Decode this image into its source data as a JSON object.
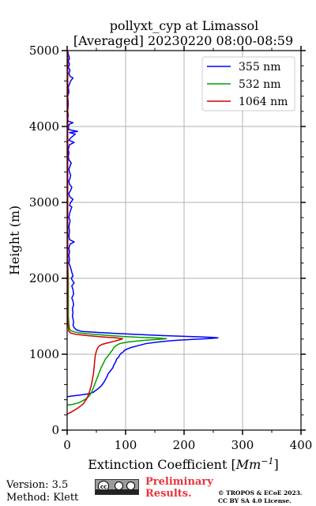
{
  "chart_data": {
    "type": "line",
    "title_line1": "pollyxt_cyp at Limassol",
    "title_line2": "[Averaged] 20230220 08:00-08:59",
    "xlabel": "Extinction Coefficient [",
    "xlabel_unit": "Mm",
    "xlabel_exp": "−1",
    "xlabel_close": "]",
    "ylabel": "Height (m)",
    "xlim": [
      0,
      400
    ],
    "ylim": [
      0,
      5000
    ],
    "x_ticks": [
      0,
      100,
      200,
      300,
      400
    ],
    "y_ticks": [
      0,
      1000,
      2000,
      3000,
      4000,
      5000
    ],
    "grid": true,
    "legend_position": "top-right",
    "series": [
      {
        "name": "355 nm",
        "color": "#0000ff",
        "points": [
          [
            0,
            440
          ],
          [
            10,
            450
          ],
          [
            25,
            465
          ],
          [
            38,
            480
          ],
          [
            45,
            500
          ],
          [
            52,
            540
          ],
          [
            58,
            580
          ],
          [
            62,
            620
          ],
          [
            65,
            660
          ],
          [
            68,
            700
          ],
          [
            70,
            740
          ],
          [
            74,
            780
          ],
          [
            78,
            820
          ],
          [
            80,
            860
          ],
          [
            83,
            900
          ],
          [
            85,
            940
          ],
          [
            88,
            960
          ],
          [
            90,
            990
          ],
          [
            92,
            1010
          ],
          [
            96,
            1030
          ],
          [
            98,
            1050
          ],
          [
            103,
            1070
          ],
          [
            110,
            1090
          ],
          [
            120,
            1110
          ],
          [
            135,
            1140
          ],
          [
            155,
            1160
          ],
          [
            180,
            1180
          ],
          [
            215,
            1195
          ],
          [
            240,
            1205
          ],
          [
            258,
            1215
          ],
          [
            250,
            1222
          ],
          [
            215,
            1232
          ],
          [
            165,
            1245
          ],
          [
            120,
            1260
          ],
          [
            80,
            1275
          ],
          [
            45,
            1290
          ],
          [
            25,
            1300
          ],
          [
            16,
            1320
          ],
          [
            12,
            1350
          ],
          [
            10,
            1380
          ],
          [
            11,
            1420
          ],
          [
            10,
            1470
          ],
          [
            9,
            1500
          ],
          [
            10,
            1550
          ],
          [
            9,
            1600
          ],
          [
            11,
            1650
          ],
          [
            10,
            1700
          ],
          [
            8,
            1740
          ],
          [
            11,
            1790
          ],
          [
            10,
            1850
          ],
          [
            8,
            1900
          ],
          [
            12,
            1940
          ],
          [
            10,
            1960
          ],
          [
            7,
            2000
          ],
          [
            10,
            2030
          ],
          [
            8,
            2080
          ],
          [
            7,
            2110
          ],
          [
            5,
            2160
          ],
          [
            3,
            2200
          ],
          [
            4,
            2250
          ],
          [
            3,
            2300
          ],
          [
            4,
            2350
          ],
          [
            3,
            2400
          ],
          [
            5,
            2450
          ],
          [
            12,
            2480
          ],
          [
            4,
            2510
          ],
          [
            3,
            2560
          ],
          [
            4,
            2620
          ],
          [
            3,
            2680
          ],
          [
            4,
            2720
          ],
          [
            5,
            2760
          ],
          [
            3,
            2800
          ],
          [
            4,
            2850
          ],
          [
            6,
            2900
          ],
          [
            8,
            2940
          ],
          [
            4,
            2960
          ],
          [
            6,
            3000
          ],
          [
            10,
            3040
          ],
          [
            4,
            3080
          ],
          [
            3,
            3120
          ],
          [
            6,
            3160
          ],
          [
            8,
            3200
          ],
          [
            4,
            3240
          ],
          [
            3,
            3280
          ],
          [
            5,
            3320
          ],
          [
            6,
            3360
          ],
          [
            4,
            3400
          ],
          [
            3,
            3440
          ],
          [
            5,
            3480
          ],
          [
            7,
            3520
          ],
          [
            3,
            3560
          ],
          [
            2,
            3600
          ],
          [
            3,
            3650
          ],
          [
            2,
            3700
          ],
          [
            4,
            3760
          ],
          [
            12,
            3790
          ],
          [
            3,
            3820
          ],
          [
            6,
            3850
          ],
          [
            14,
            3900
          ],
          [
            4,
            3920
          ],
          [
            18,
            3935
          ],
          [
            3,
            3960
          ],
          [
            2,
            4000
          ],
          [
            4,
            4030
          ],
          [
            10,
            4050
          ],
          [
            2,
            4070
          ],
          [
            1,
            4100
          ],
          [
            2,
            4150
          ],
          [
            1,
            4200
          ],
          [
            2,
            4300
          ],
          [
            1,
            4400
          ],
          [
            3,
            4450
          ],
          [
            2,
            4520
          ],
          [
            4,
            4560
          ],
          [
            6,
            4600
          ],
          [
            10,
            4640
          ],
          [
            5,
            4660
          ],
          [
            3,
            4700
          ],
          [
            5,
            4740
          ],
          [
            2,
            4780
          ],
          [
            4,
            4820
          ],
          [
            2,
            4860
          ],
          [
            4,
            4900
          ],
          [
            2,
            4950
          ],
          [
            1,
            5000
          ]
        ]
      },
      {
        "name": "532 nm",
        "color": "#00a000",
        "points": [
          [
            0,
            330
          ],
          [
            10,
            340
          ],
          [
            20,
            360
          ],
          [
            30,
            400
          ],
          [
            38,
            450
          ],
          [
            42,
            500
          ],
          [
            45,
            560
          ],
          [
            48,
            620
          ],
          [
            52,
            700
          ],
          [
            55,
            760
          ],
          [
            58,
            820
          ],
          [
            62,
            880
          ],
          [
            65,
            930
          ],
          [
            70,
            980
          ],
          [
            74,
            1020
          ],
          [
            78,
            1060
          ],
          [
            80,
            1090
          ],
          [
            85,
            1120
          ],
          [
            90,
            1140
          ],
          [
            100,
            1155
          ],
          [
            110,
            1165
          ],
          [
            125,
            1178
          ],
          [
            145,
            1190
          ],
          [
            165,
            1200
          ],
          [
            170,
            1205
          ],
          [
            158,
            1212
          ],
          [
            130,
            1220
          ],
          [
            100,
            1232
          ],
          [
            70,
            1248
          ],
          [
            40,
            1265
          ],
          [
            22,
            1280
          ],
          [
            12,
            1295
          ],
          [
            6,
            1310
          ],
          [
            4,
            1340
          ],
          [
            3,
            1400
          ],
          [
            2,
            1500
          ],
          [
            2,
            1600
          ],
          [
            2,
            1800
          ],
          [
            2,
            2000
          ],
          [
            1,
            2200
          ],
          [
            1,
            2500
          ],
          [
            1,
            2800
          ],
          [
            1,
            3000
          ],
          [
            1,
            3500
          ],
          [
            1,
            4000
          ],
          [
            1,
            4500
          ],
          [
            1,
            5000
          ]
        ]
      },
      {
        "name": "1064 nm",
        "color": "#d00000",
        "points": [
          [
            0,
            210
          ],
          [
            5,
            230
          ],
          [
            12,
            260
          ],
          [
            20,
            300
          ],
          [
            28,
            350
          ],
          [
            34,
            420
          ],
          [
            38,
            500
          ],
          [
            41,
            580
          ],
          [
            43,
            660
          ],
          [
            45,
            740
          ],
          [
            46,
            820
          ],
          [
            47,
            900
          ],
          [
            48,
            980
          ],
          [
            50,
            1040
          ],
          [
            52,
            1080
          ],
          [
            55,
            1110
          ],
          [
            60,
            1130
          ],
          [
            70,
            1150
          ],
          [
            80,
            1170
          ],
          [
            90,
            1190
          ],
          [
            95,
            1205
          ],
          [
            85,
            1215
          ],
          [
            60,
            1228
          ],
          [
            35,
            1245
          ],
          [
            15,
            1262
          ],
          [
            6,
            1278
          ],
          [
            3,
            1300
          ],
          [
            2,
            1350
          ],
          [
            1,
            1450
          ],
          [
            1,
            1600
          ],
          [
            1,
            1800
          ],
          [
            1,
            2000
          ],
          [
            1,
            2400
          ],
          [
            1,
            2800
          ],
          [
            1,
            3200
          ],
          [
            1,
            3600
          ],
          [
            1,
            4000
          ],
          [
            1,
            4400
          ],
          [
            1,
            4800
          ],
          [
            1,
            5000
          ]
        ]
      }
    ]
  },
  "footer": {
    "version": "Version: 3.5",
    "method": "Method: Klett",
    "license_badge": "cc by sa",
    "preliminary_line1": "Preliminary",
    "preliminary_line2": "Results.",
    "copyright_line1": "© TROPOS & ECoE 2023.",
    "copyright_line2": "CC BY SA 4.0 License."
  }
}
